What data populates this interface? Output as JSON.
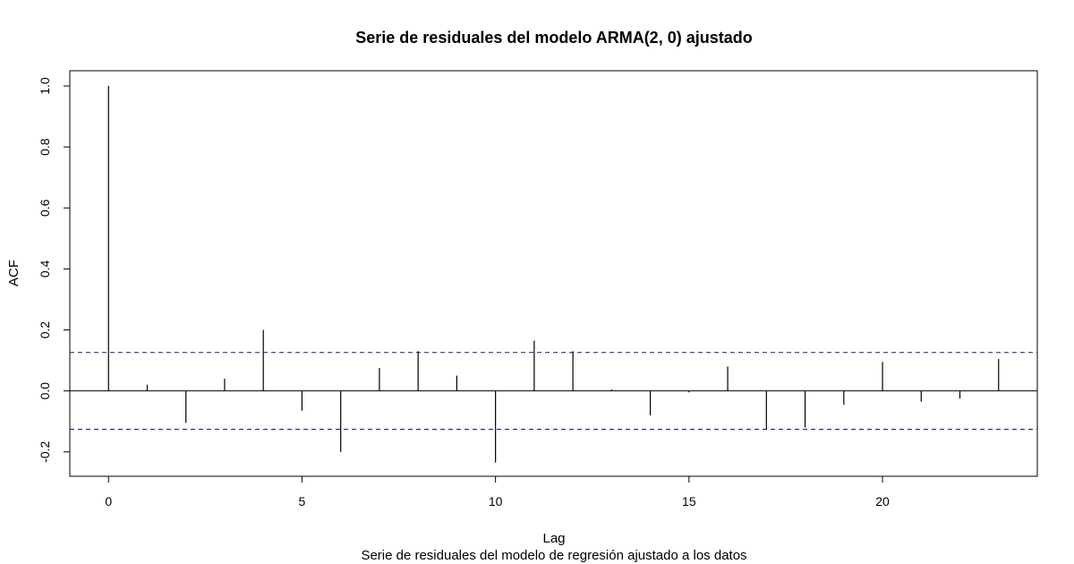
{
  "chart_data": {
    "type": "bar",
    "title": "Serie de residuales del modelo ARMA(2, 0) ajustado",
    "xlabel": "Lag",
    "ylabel": "ACF",
    "subtitle": "Serie de residuales del modelo de regresión ajustado a los datos",
    "xlim": [
      -1,
      24
    ],
    "ylim": [
      -0.28,
      1.05
    ],
    "x_ticks": [
      0,
      5,
      10,
      15,
      20
    ],
    "x_tick_labels": [
      "0",
      "5",
      "10",
      "15",
      "20"
    ],
    "y_ticks": [
      -0.2,
      0.0,
      0.2,
      0.4,
      0.6,
      0.8,
      1.0
    ],
    "y_tick_labels": [
      "-0.2",
      "0.0",
      "0.2",
      "0.4",
      "0.6",
      "0.8",
      "1.0"
    ],
    "confidence_bound": 0.126,
    "lags": [
      0,
      1,
      2,
      3,
      4,
      5,
      6,
      7,
      8,
      9,
      10,
      11,
      12,
      13,
      14,
      15,
      16,
      17,
      18,
      19,
      20,
      21,
      22,
      23
    ],
    "acf": [
      1.0,
      0.02,
      -0.105,
      0.04,
      0.2,
      -0.065,
      -0.2,
      0.075,
      0.13,
      0.05,
      -0.235,
      0.165,
      0.13,
      0.005,
      -0.08,
      -0.005,
      0.08,
      -0.125,
      -0.12,
      -0.045,
      0.095,
      -0.035,
      -0.025,
      0.105
    ],
    "grid": false,
    "colors": {
      "bars": "#000000",
      "bounds": "#1a1a6e",
      "axes": "#000000"
    }
  }
}
